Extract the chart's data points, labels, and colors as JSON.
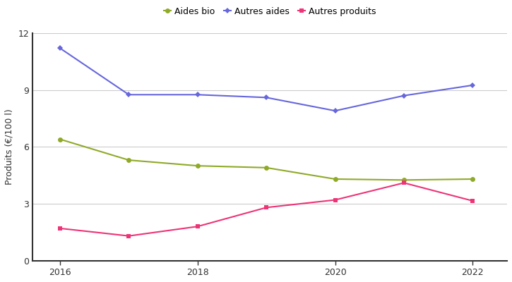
{
  "years": [
    2016,
    2017,
    2018,
    2019,
    2020,
    2021,
    2022
  ],
  "aides_bio": [
    6.4,
    5.3,
    5.0,
    4.9,
    4.3,
    4.25,
    4.3
  ],
  "autres_aides": [
    11.2,
    8.75,
    8.75,
    8.6,
    7.9,
    8.7,
    9.25
  ],
  "autres_produits": [
    1.7,
    1.3,
    1.8,
    2.8,
    3.2,
    4.1,
    3.15
  ],
  "aides_bio_color": "#8faa28",
  "autres_aides_color": "#6666dd",
  "autres_produits_color": "#ee3377",
  "ylabel": "Produits (€/100 l)",
  "ylim": [
    0,
    12
  ],
  "yticks": [
    0,
    3,
    6,
    9,
    12
  ],
  "xticks": [
    2016,
    2018,
    2020,
    2022
  ],
  "legend_labels": [
    "Aides bio",
    "Autres aides",
    "Autres produits"
  ],
  "marker_size": 5,
  "linewidth": 1.5,
  "bg_color": "#ffffff",
  "grid_color": "#cccccc",
  "spine_color": "#333333",
  "tick_color": "#333333",
  "label_fontsize": 9,
  "ylabel_fontsize": 9
}
